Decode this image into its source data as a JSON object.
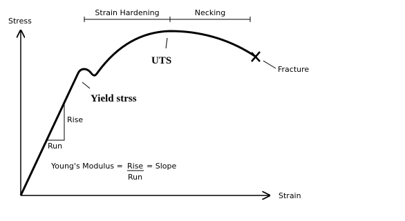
{
  "axes": {
    "y_label": "Stress",
    "x_label": "Strain"
  },
  "regions": {
    "strain_hardening": "Strain Hardening",
    "necking": "Necking"
  },
  "points": {
    "uts": "UTS",
    "yield": "Yield strss",
    "fracture": "Fracture"
  },
  "triangle": {
    "rise": "Rise",
    "run": "Run"
  },
  "formula": {
    "lhs": "Young's Modulus =",
    "numerator": "Rise",
    "rhs": "= Slope",
    "denominator": "Run"
  }
}
